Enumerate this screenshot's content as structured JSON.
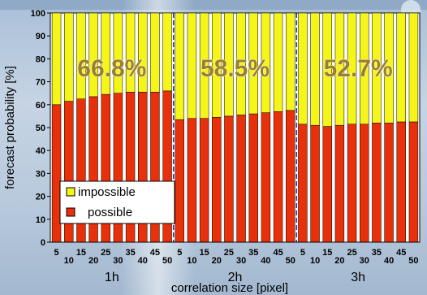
{
  "chart_data": {
    "type": "bar",
    "stacked": true,
    "ylabel": "forecast probability [%]",
    "xlabel": "correlation size [pixel]",
    "ylim": [
      0,
      100
    ],
    "yticks": [
      0,
      10,
      20,
      30,
      40,
      50,
      60,
      70,
      80,
      90,
      100
    ],
    "grid": false,
    "legend_position": "bottom-left",
    "groups": [
      {
        "name": "1h",
        "overall": "66.8%"
      },
      {
        "name": "2h",
        "overall": "58.5%"
      },
      {
        "name": "3h",
        "overall": "52.7%"
      }
    ],
    "categories": [
      "5",
      "10",
      "15",
      "20",
      "25",
      "30",
      "35",
      "40",
      "45",
      "50"
    ],
    "series": [
      {
        "name": "possible",
        "color": "#e8300a",
        "values": [
          [
            60,
            61.5,
            62.5,
            63.5,
            64.5,
            65,
            65.5,
            65.5,
            65.5,
            66
          ],
          [
            53.5,
            54,
            54,
            54.5,
            55,
            55.5,
            56,
            56.5,
            57,
            57.5
          ],
          [
            51.5,
            51,
            50.5,
            51,
            51.5,
            51.5,
            52,
            52,
            52.5,
            52.5
          ]
        ]
      },
      {
        "name": "impossible",
        "color": "#f5f51a",
        "values": [
          [
            40,
            38.5,
            37.5,
            36.5,
            35.5,
            35,
            34.5,
            34.5,
            34.5,
            34
          ],
          [
            46.5,
            46,
            46,
            45.5,
            45,
            44.5,
            44,
            43.5,
            43,
            42.5
          ],
          [
            48.5,
            49,
            49.5,
            49,
            48.5,
            48.5,
            48,
            48,
            47.5,
            47.5
          ]
        ]
      }
    ]
  }
}
